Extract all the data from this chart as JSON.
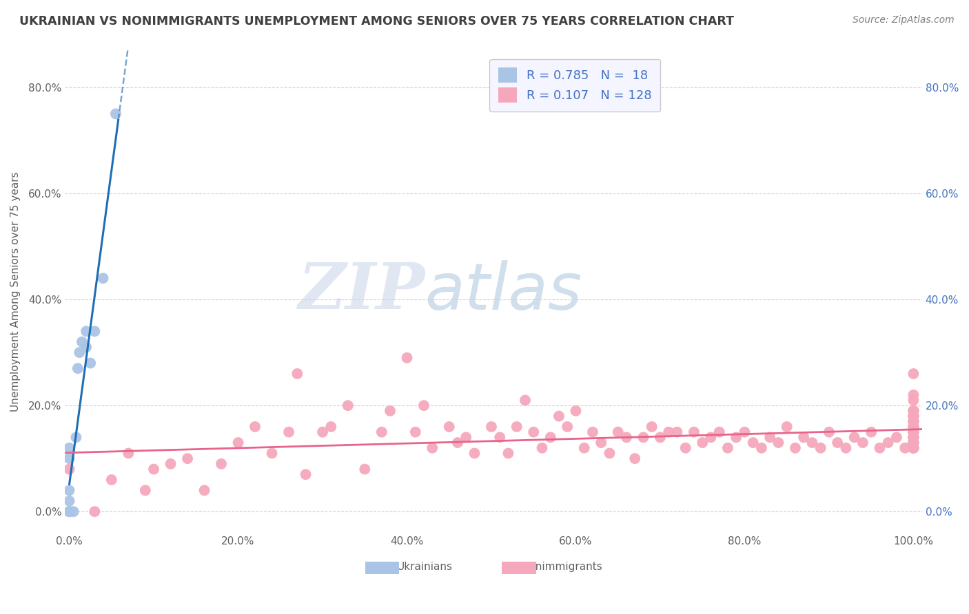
{
  "title": "UKRAINIAN VS NONIMMIGRANTS UNEMPLOYMENT AMONG SENIORS OVER 75 YEARS CORRELATION CHART",
  "source": "Source: ZipAtlas.com",
  "ylabel": "Unemployment Among Seniors over 75 years",
  "xlim": [
    -0.005,
    1.01
  ],
  "ylim": [
    -0.04,
    0.87
  ],
  "x_ticks": [
    0.0,
    0.2,
    0.4,
    0.6,
    0.8,
    1.0
  ],
  "x_tick_labels": [
    "0.0%",
    "20.0%",
    "40.0%",
    "60.0%",
    "80.0%",
    "100.0%"
  ],
  "y_ticks": [
    0.0,
    0.2,
    0.4,
    0.6,
    0.8
  ],
  "y_tick_labels_left": [
    "0.0%",
    "20.0%",
    "40.0%",
    "60.0%",
    "80.0%"
  ],
  "y_tick_labels_right": [
    "0.0%",
    "20.0%",
    "40.0%",
    "60.0%",
    "80.0%"
  ],
  "watermark_zip": "ZIP",
  "watermark_atlas": "atlas",
  "legend_R1": "0.785",
  "legend_N1": "18",
  "legend_R2": "0.107",
  "legend_N2": "128",
  "ukr_color": "#aac4e5",
  "nonimm_color": "#f5a8bc",
  "ukr_line_color": "#1f6eb5",
  "nonimm_line_color": "#e8648a",
  "title_color": "#404040",
  "axis_label_color": "#606060",
  "tick_color_left": "#606060",
  "tick_color_right": "#4472c4",
  "source_color": "#808080",
  "grid_color": "#d0d0d0",
  "background_color": "#ffffff",
  "legend_box_bg": "#f5f5ff",
  "legend_box_edge": "#c8c8d0",
  "ukrainians_x": [
    0.0,
    0.0,
    0.0,
    0.0,
    0.0,
    0.0,
    0.0,
    0.005,
    0.008,
    0.01,
    0.012,
    0.015,
    0.02,
    0.02,
    0.025,
    0.03,
    0.04,
    0.055
  ],
  "ukrainians_y": [
    0.0,
    0.0,
    0.0,
    0.02,
    0.04,
    0.1,
    0.12,
    0.0,
    0.14,
    0.27,
    0.3,
    0.32,
    0.31,
    0.34,
    0.28,
    0.34,
    0.44,
    0.75
  ],
  "nonimmigrants_x": [
    0.0,
    0.03,
    0.05,
    0.07,
    0.09,
    0.1,
    0.12,
    0.14,
    0.16,
    0.18,
    0.2,
    0.22,
    0.24,
    0.26,
    0.27,
    0.28,
    0.3,
    0.31,
    0.33,
    0.35,
    0.37,
    0.38,
    0.4,
    0.41,
    0.42,
    0.43,
    0.45,
    0.46,
    0.47,
    0.48,
    0.5,
    0.51,
    0.52,
    0.53,
    0.54,
    0.55,
    0.56,
    0.57,
    0.58,
    0.59,
    0.6,
    0.61,
    0.62,
    0.63,
    0.64,
    0.65,
    0.66,
    0.67,
    0.68,
    0.69,
    0.7,
    0.71,
    0.72,
    0.73,
    0.74,
    0.75,
    0.76,
    0.77,
    0.78,
    0.79,
    0.8,
    0.81,
    0.82,
    0.83,
    0.84,
    0.85,
    0.86,
    0.87,
    0.88,
    0.89,
    0.9,
    0.91,
    0.92,
    0.93,
    0.94,
    0.95,
    0.96,
    0.97,
    0.98,
    0.99,
    1.0,
    1.0,
    1.0,
    1.0,
    1.0,
    1.0,
    1.0,
    1.0,
    1.0,
    1.0,
    1.0,
    1.0,
    1.0,
    1.0,
    1.0,
    1.0,
    1.0,
    1.0,
    1.0,
    1.0,
    1.0,
    1.0,
    1.0,
    1.0,
    1.0,
    1.0,
    1.0,
    1.0,
    1.0,
    1.0,
    1.0,
    1.0,
    1.0,
    1.0,
    1.0,
    1.0,
    1.0,
    1.0,
    1.0,
    1.0,
    1.0,
    1.0,
    1.0,
    1.0,
    1.0,
    1.0,
    1.0,
    1.0
  ],
  "nonimmigrants_y": [
    0.08,
    0.0,
    0.06,
    0.11,
    0.04,
    0.08,
    0.09,
    0.1,
    0.04,
    0.09,
    0.13,
    0.16,
    0.11,
    0.15,
    0.26,
    0.07,
    0.15,
    0.16,
    0.2,
    0.08,
    0.15,
    0.19,
    0.29,
    0.15,
    0.2,
    0.12,
    0.16,
    0.13,
    0.14,
    0.11,
    0.16,
    0.14,
    0.11,
    0.16,
    0.21,
    0.15,
    0.12,
    0.14,
    0.18,
    0.16,
    0.19,
    0.12,
    0.15,
    0.13,
    0.11,
    0.15,
    0.14,
    0.1,
    0.14,
    0.16,
    0.14,
    0.15,
    0.15,
    0.12,
    0.15,
    0.13,
    0.14,
    0.15,
    0.12,
    0.14,
    0.15,
    0.13,
    0.12,
    0.14,
    0.13,
    0.16,
    0.12,
    0.14,
    0.13,
    0.12,
    0.15,
    0.13,
    0.12,
    0.14,
    0.13,
    0.15,
    0.12,
    0.13,
    0.14,
    0.12,
    0.15,
    0.13,
    0.12,
    0.14,
    0.16,
    0.18,
    0.19,
    0.17,
    0.13,
    0.16,
    0.18,
    0.14,
    0.12,
    0.15,
    0.13,
    0.19,
    0.17,
    0.15,
    0.13,
    0.12,
    0.14,
    0.16,
    0.15,
    0.18,
    0.19,
    0.14,
    0.17,
    0.21,
    0.13,
    0.12,
    0.14,
    0.16,
    0.19,
    0.14,
    0.12,
    0.17,
    0.15,
    0.13,
    0.14,
    0.16,
    0.26,
    0.19,
    0.18,
    0.17,
    0.13,
    0.12,
    0.15,
    0.22
  ]
}
